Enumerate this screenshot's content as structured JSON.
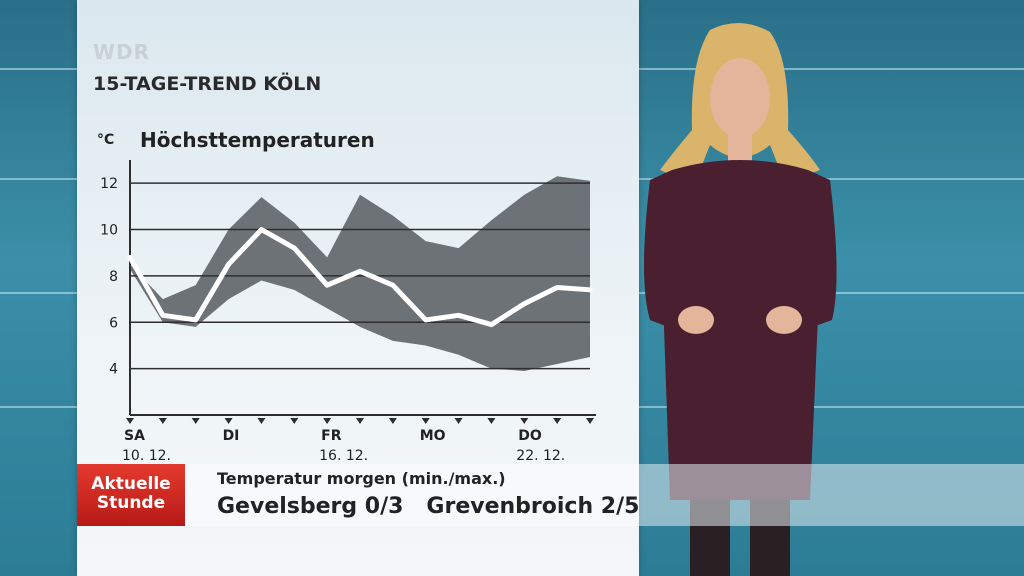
{
  "brand": "WDR",
  "title": "15-TAGE-TREND KÖLN",
  "chart_data": {
    "type": "line",
    "title": "Höchsttemperaturen",
    "unit": "°C",
    "y_ticks": [
      "12",
      "10",
      "8",
      "6",
      "4"
    ],
    "ylim": [
      2,
      13
    ],
    "x": [
      0,
      1,
      2,
      3,
      4,
      5,
      6,
      7,
      8,
      9,
      10,
      11,
      12,
      13,
      14
    ],
    "day_labels": [
      {
        "day": "SA",
        "date": "10. 12."
      },
      {
        "day": "DI",
        "date": ""
      },
      {
        "day": "FR",
        "date": "16. 12."
      },
      {
        "day": "MO",
        "date": ""
      },
      {
        "day": "DO",
        "date": "22. 12."
      }
    ],
    "day_label_index": [
      0,
      3,
      6,
      9,
      12
    ],
    "series": [
      {
        "values": [
          8.8,
          6.3,
          6.1,
          8.5,
          10.0,
          9.2,
          7.6,
          8.2,
          7.6,
          6.1,
          6.3,
          5.9,
          6.8,
          7.5,
          7.4
        ]
      }
    ],
    "band_upper": [
      8.5,
      7.0,
      7.6,
      10.0,
      11.4,
      10.3,
      8.8,
      11.5,
      10.6,
      9.5,
      9.2,
      10.4,
      11.5,
      12.3,
      12.1
    ],
    "band_lower": [
      8.3,
      6.0,
      5.8,
      7.0,
      7.8,
      7.4,
      6.6,
      5.8,
      5.2,
      5.0,
      4.6,
      4.0,
      3.9,
      4.2,
      4.5
    ],
    "grid": true,
    "colors": {
      "line": "#ffffff",
      "band": "#5e6468",
      "axis": "#2e2e2e"
    }
  },
  "ticker": {
    "logo_line1": "Aktuelle",
    "logo_line2": "Stunde",
    "label": "Temperatur morgen (min./max.)",
    "value": "Gevelsberg 0/3   Grevenbroich 2/5"
  }
}
